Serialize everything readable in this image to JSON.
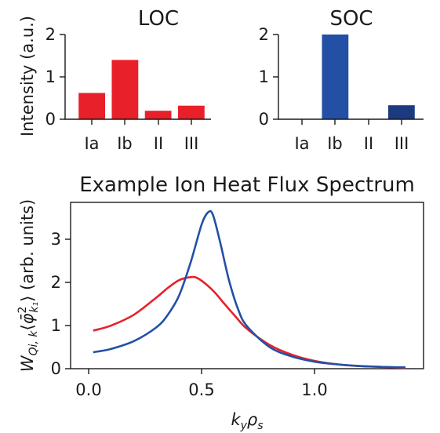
{
  "chart_data": [
    {
      "type": "bar",
      "title": "LOC",
      "ylabel": "Intensity (a.u.)",
      "categories": [
        "Ia",
        "Ib",
        "II",
        "III"
      ],
      "values": [
        0.62,
        1.4,
        0.2,
        0.32
      ],
      "ylim": [
        0,
        2
      ],
      "yticks": [
        "0",
        "1",
        "2"
      ],
      "bar_colors": [
        "#e8202a",
        "#e8202a",
        "#e8202a",
        "#e8202a"
      ]
    },
    {
      "type": "bar",
      "title": "SOC",
      "categories": [
        "Ia",
        "Ib",
        "II",
        "III"
      ],
      "values": [
        0,
        2.0,
        0,
        0.33
      ],
      "ylim": [
        0,
        2
      ],
      "yticks": [
        "0",
        "1",
        "2"
      ],
      "bar_colors": [
        "#2350a5",
        "#2350a5",
        "#2350a5",
        "#1c3a80"
      ]
    },
    {
      "type": "line",
      "title": "Example Ion Heat Flux Spectrum",
      "xlabel": "k_y ρ_s",
      "ylabel": "W_{Qi,k} ⟨φ̄²_{k₁}⟩ (arb. units)",
      "xlim": [
        -0.08,
        1.48
      ],
      "ylim": [
        0,
        3.85
      ],
      "xticks": [
        "0.0",
        "0.5",
        "1.0"
      ],
      "yticks": [
        "0",
        "1",
        "2",
        "3"
      ],
      "series": [
        {
          "color": "#e8202a",
          "x": [
            0.02,
            0.1,
            0.2,
            0.3,
            0.35,
            0.4,
            0.45,
            0.48,
            0.52,
            0.56,
            0.6,
            0.65,
            0.7,
            0.8,
            0.9,
            1.0,
            1.1,
            1.2,
            1.3,
            1.4
          ],
          "y": [
            0.88,
            1.0,
            1.25,
            1.65,
            1.87,
            2.05,
            2.12,
            2.1,
            1.95,
            1.75,
            1.5,
            1.2,
            0.92,
            0.55,
            0.32,
            0.18,
            0.1,
            0.06,
            0.04,
            0.02
          ]
        },
        {
          "color": "#2350a5",
          "x": [
            0.02,
            0.1,
            0.2,
            0.3,
            0.35,
            0.4,
            0.45,
            0.5,
            0.53,
            0.55,
            0.58,
            0.62,
            0.66,
            0.7,
            0.8,
            0.9,
            1.0,
            1.1,
            1.2,
            1.3,
            1.4
          ],
          "y": [
            0.38,
            0.46,
            0.64,
            0.96,
            1.25,
            1.7,
            2.45,
            3.35,
            3.63,
            3.55,
            2.95,
            2.05,
            1.38,
            0.98,
            0.5,
            0.28,
            0.16,
            0.1,
            0.06,
            0.04,
            0.03
          ]
        }
      ]
    }
  ]
}
